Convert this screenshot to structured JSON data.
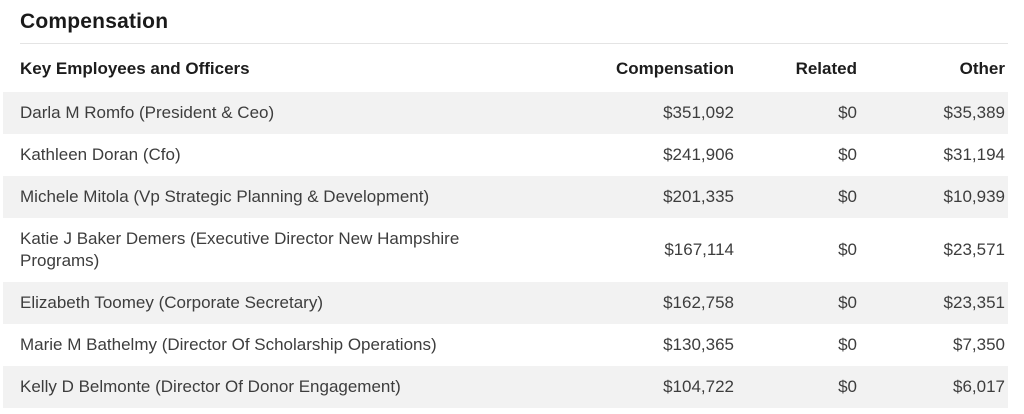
{
  "page": {
    "title": "Compensation"
  },
  "colors": {
    "heading_text": "#1a1a1a",
    "body_text": "#3d3d3d",
    "row_alt_background": "#f2f2f2",
    "divider": "#e4e4e4"
  },
  "table": {
    "columns": [
      {
        "key": "name",
        "label": "Key Employees and Officers",
        "align": "left"
      },
      {
        "key": "compensation",
        "label": "Compensation",
        "align": "right"
      },
      {
        "key": "related",
        "label": "Related",
        "align": "right"
      },
      {
        "key": "other",
        "label": "Other",
        "align": "right"
      }
    ],
    "rows": [
      {
        "name": "Darla M Romfo (President & Ceo)",
        "compensation": "$351,092",
        "related": "$0",
        "other": "$35,389"
      },
      {
        "name": "Kathleen Doran (Cfo)",
        "compensation": "$241,906",
        "related": "$0",
        "other": "$31,194"
      },
      {
        "name": "Michele Mitola (Vp Strategic Planning & Development)",
        "compensation": "$201,335",
        "related": "$0",
        "other": "$10,939"
      },
      {
        "name": "Katie J Baker Demers (Executive Director New Hampshire Programs)",
        "compensation": "$167,114",
        "related": "$0",
        "other": "$23,571"
      },
      {
        "name": "Elizabeth Toomey (Corporate Secretary)",
        "compensation": "$162,758",
        "related": "$0",
        "other": "$23,351"
      },
      {
        "name": "Marie M Bathelmy (Director Of Scholarship Operations)",
        "compensation": "$130,365",
        "related": "$0",
        "other": "$7,350"
      },
      {
        "name": "Kelly D Belmonte (Director Of Donor Engagement)",
        "compensation": "$104,722",
        "related": "$0",
        "other": "$6,017"
      }
    ]
  }
}
